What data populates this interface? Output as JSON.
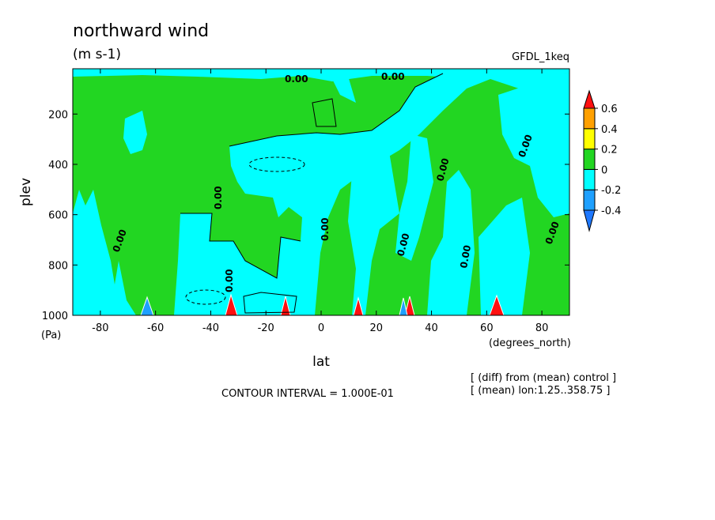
{
  "chart_data": {
    "type": "contour",
    "title": "northward wind",
    "subtitle": "(m s-1)",
    "dataset": "GFDL_1keq",
    "xlabel": "lat",
    "ylabel": "plev",
    "xunit": "(degrees_north)",
    "yunit": "(Pa)",
    "xlim": [
      -90,
      90
    ],
    "xticks": [
      -80,
      -60,
      -40,
      -20,
      0,
      20,
      40,
      60,
      80
    ],
    "ylim": [
      1000,
      20
    ],
    "yticks": [
      200,
      400,
      600,
      800,
      1000
    ],
    "levels": [
      -0.4,
      -0.2,
      0,
      0.2,
      0.4,
      0.6
    ],
    "level_labels": [
      "-0.4",
      "-0.2",
      "0",
      "0.2",
      "0.4",
      "0.6"
    ],
    "colors": [
      "#1e78ff",
      "#1ea0ff",
      "#00ffff",
      "#22d622",
      "#ffff00",
      "#ffa000",
      "#ff1010"
    ],
    "contour_label": "0.00",
    "footnote": "CONTOUR INTERVAL = 1.000E-01",
    "notes": [
      "[ (diff) from (mean) control ]",
      "[ (mean) lon:1.25..358.75 ]"
    ]
  }
}
